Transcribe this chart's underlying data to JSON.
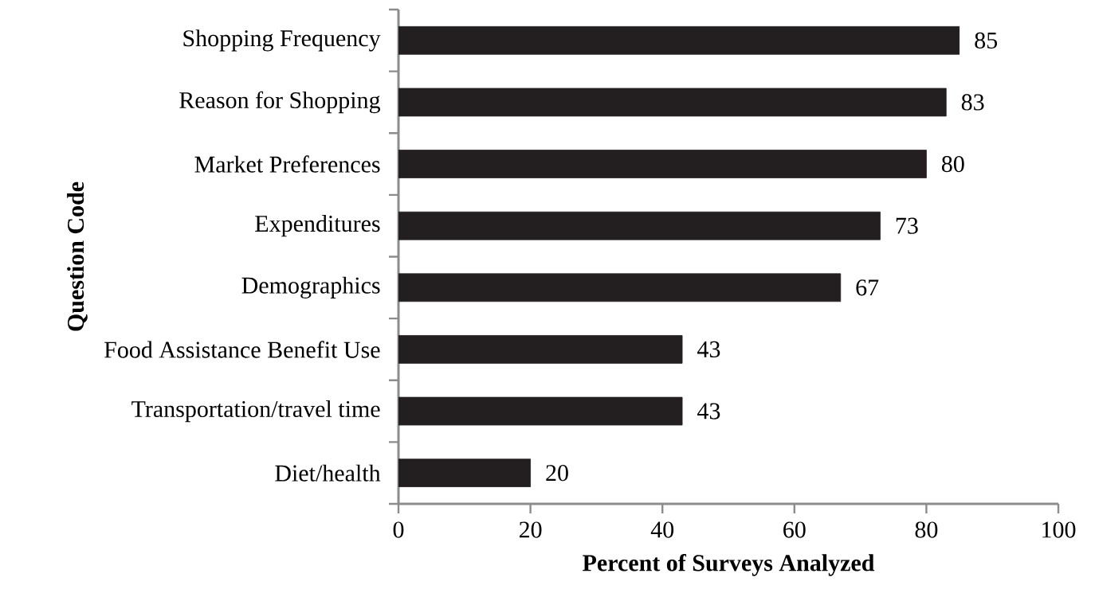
{
  "chart_data": {
    "type": "bar",
    "orientation": "horizontal",
    "xlabel": "Percent of Surveys Analyzed",
    "ylabel": "Question Code",
    "categories": [
      "Shopping Frequency",
      "Reason for Shopping",
      "Market Preferences",
      "Expenditures",
      "Demographics",
      "Food Assistance Benefit Use",
      "Transportation/travel time",
      "Diet/health"
    ],
    "values": [
      85,
      83,
      80,
      73,
      67,
      43,
      43,
      20
    ],
    "color": "#231f20",
    "xlim": [
      0,
      100
    ],
    "xticks": [
      0,
      20,
      40,
      60,
      80,
      100
    ],
    "data_labels": true,
    "grid": false
  }
}
